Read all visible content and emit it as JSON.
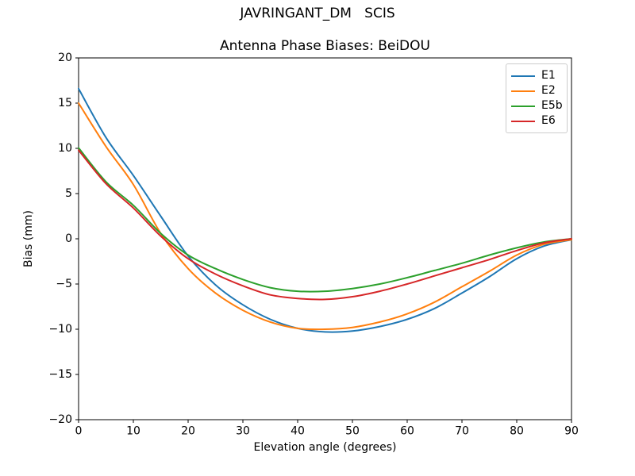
{
  "figure": {
    "suptitle": "JAVRINGANT_DM   SCIS",
    "background": "#ffffff"
  },
  "chart_data": {
    "type": "line",
    "title": "Antenna Phase Biases: BeiDOU",
    "xlabel": "Elevation angle (degrees)",
    "ylabel": "Bias (mm)",
    "xlim": [
      0,
      90
    ],
    "ylim": [
      -20,
      20
    ],
    "grid": false,
    "legend_position": "upper right",
    "axis_color": "#000000",
    "xticks": {
      "values": [
        0,
        10,
        20,
        30,
        40,
        50,
        60,
        70,
        80,
        90
      ],
      "labels": [
        "0",
        "10",
        "20",
        "30",
        "40",
        "50",
        "60",
        "70",
        "80",
        "90"
      ]
    },
    "yticks": {
      "values": [
        20,
        15,
        10,
        5,
        0,
        -5,
        -10,
        -15,
        -20
      ],
      "labels": [
        "20",
        "15",
        "10",
        "5",
        "0",
        "−5",
        "−10",
        "−15",
        "−20"
      ]
    },
    "x": [
      0,
      5,
      10,
      15,
      20,
      25,
      30,
      35,
      40,
      45,
      50,
      55,
      60,
      65,
      70,
      75,
      80,
      85,
      90
    ],
    "series": [
      {
        "name": "E1",
        "color": "#1f77b4",
        "values": [
          16.6,
          11.2,
          7.0,
          2.5,
          -1.9,
          -5.1,
          -7.3,
          -8.9,
          -9.9,
          -10.3,
          -10.2,
          -9.7,
          -8.9,
          -7.7,
          -6.0,
          -4.2,
          -2.2,
          -0.8,
          -0.1
        ]
      },
      {
        "name": "E2",
        "color": "#ff7f0e",
        "values": [
          15.0,
          10.2,
          6.0,
          0.6,
          -3.3,
          -6.0,
          -7.9,
          -9.2,
          -9.9,
          -10.0,
          -9.8,
          -9.2,
          -8.3,
          -7.0,
          -5.3,
          -3.6,
          -1.8,
          -0.6,
          -0.1
        ]
      },
      {
        "name": "E5b",
        "color": "#2ca02c",
        "values": [
          10.05,
          6.3,
          3.7,
          0.6,
          -1.8,
          -3.3,
          -4.5,
          -5.4,
          -5.8,
          -5.8,
          -5.5,
          -5.0,
          -4.3,
          -3.5,
          -2.7,
          -1.8,
          -1.0,
          -0.35,
          0.0
        ]
      },
      {
        "name": "E6",
        "color": "#d62728",
        "values": [
          9.8,
          6.1,
          3.4,
          0.3,
          -2.2,
          -3.9,
          -5.2,
          -6.2,
          -6.6,
          -6.7,
          -6.4,
          -5.8,
          -5.0,
          -4.1,
          -3.2,
          -2.3,
          -1.3,
          -0.45,
          0.0
        ]
      }
    ]
  }
}
